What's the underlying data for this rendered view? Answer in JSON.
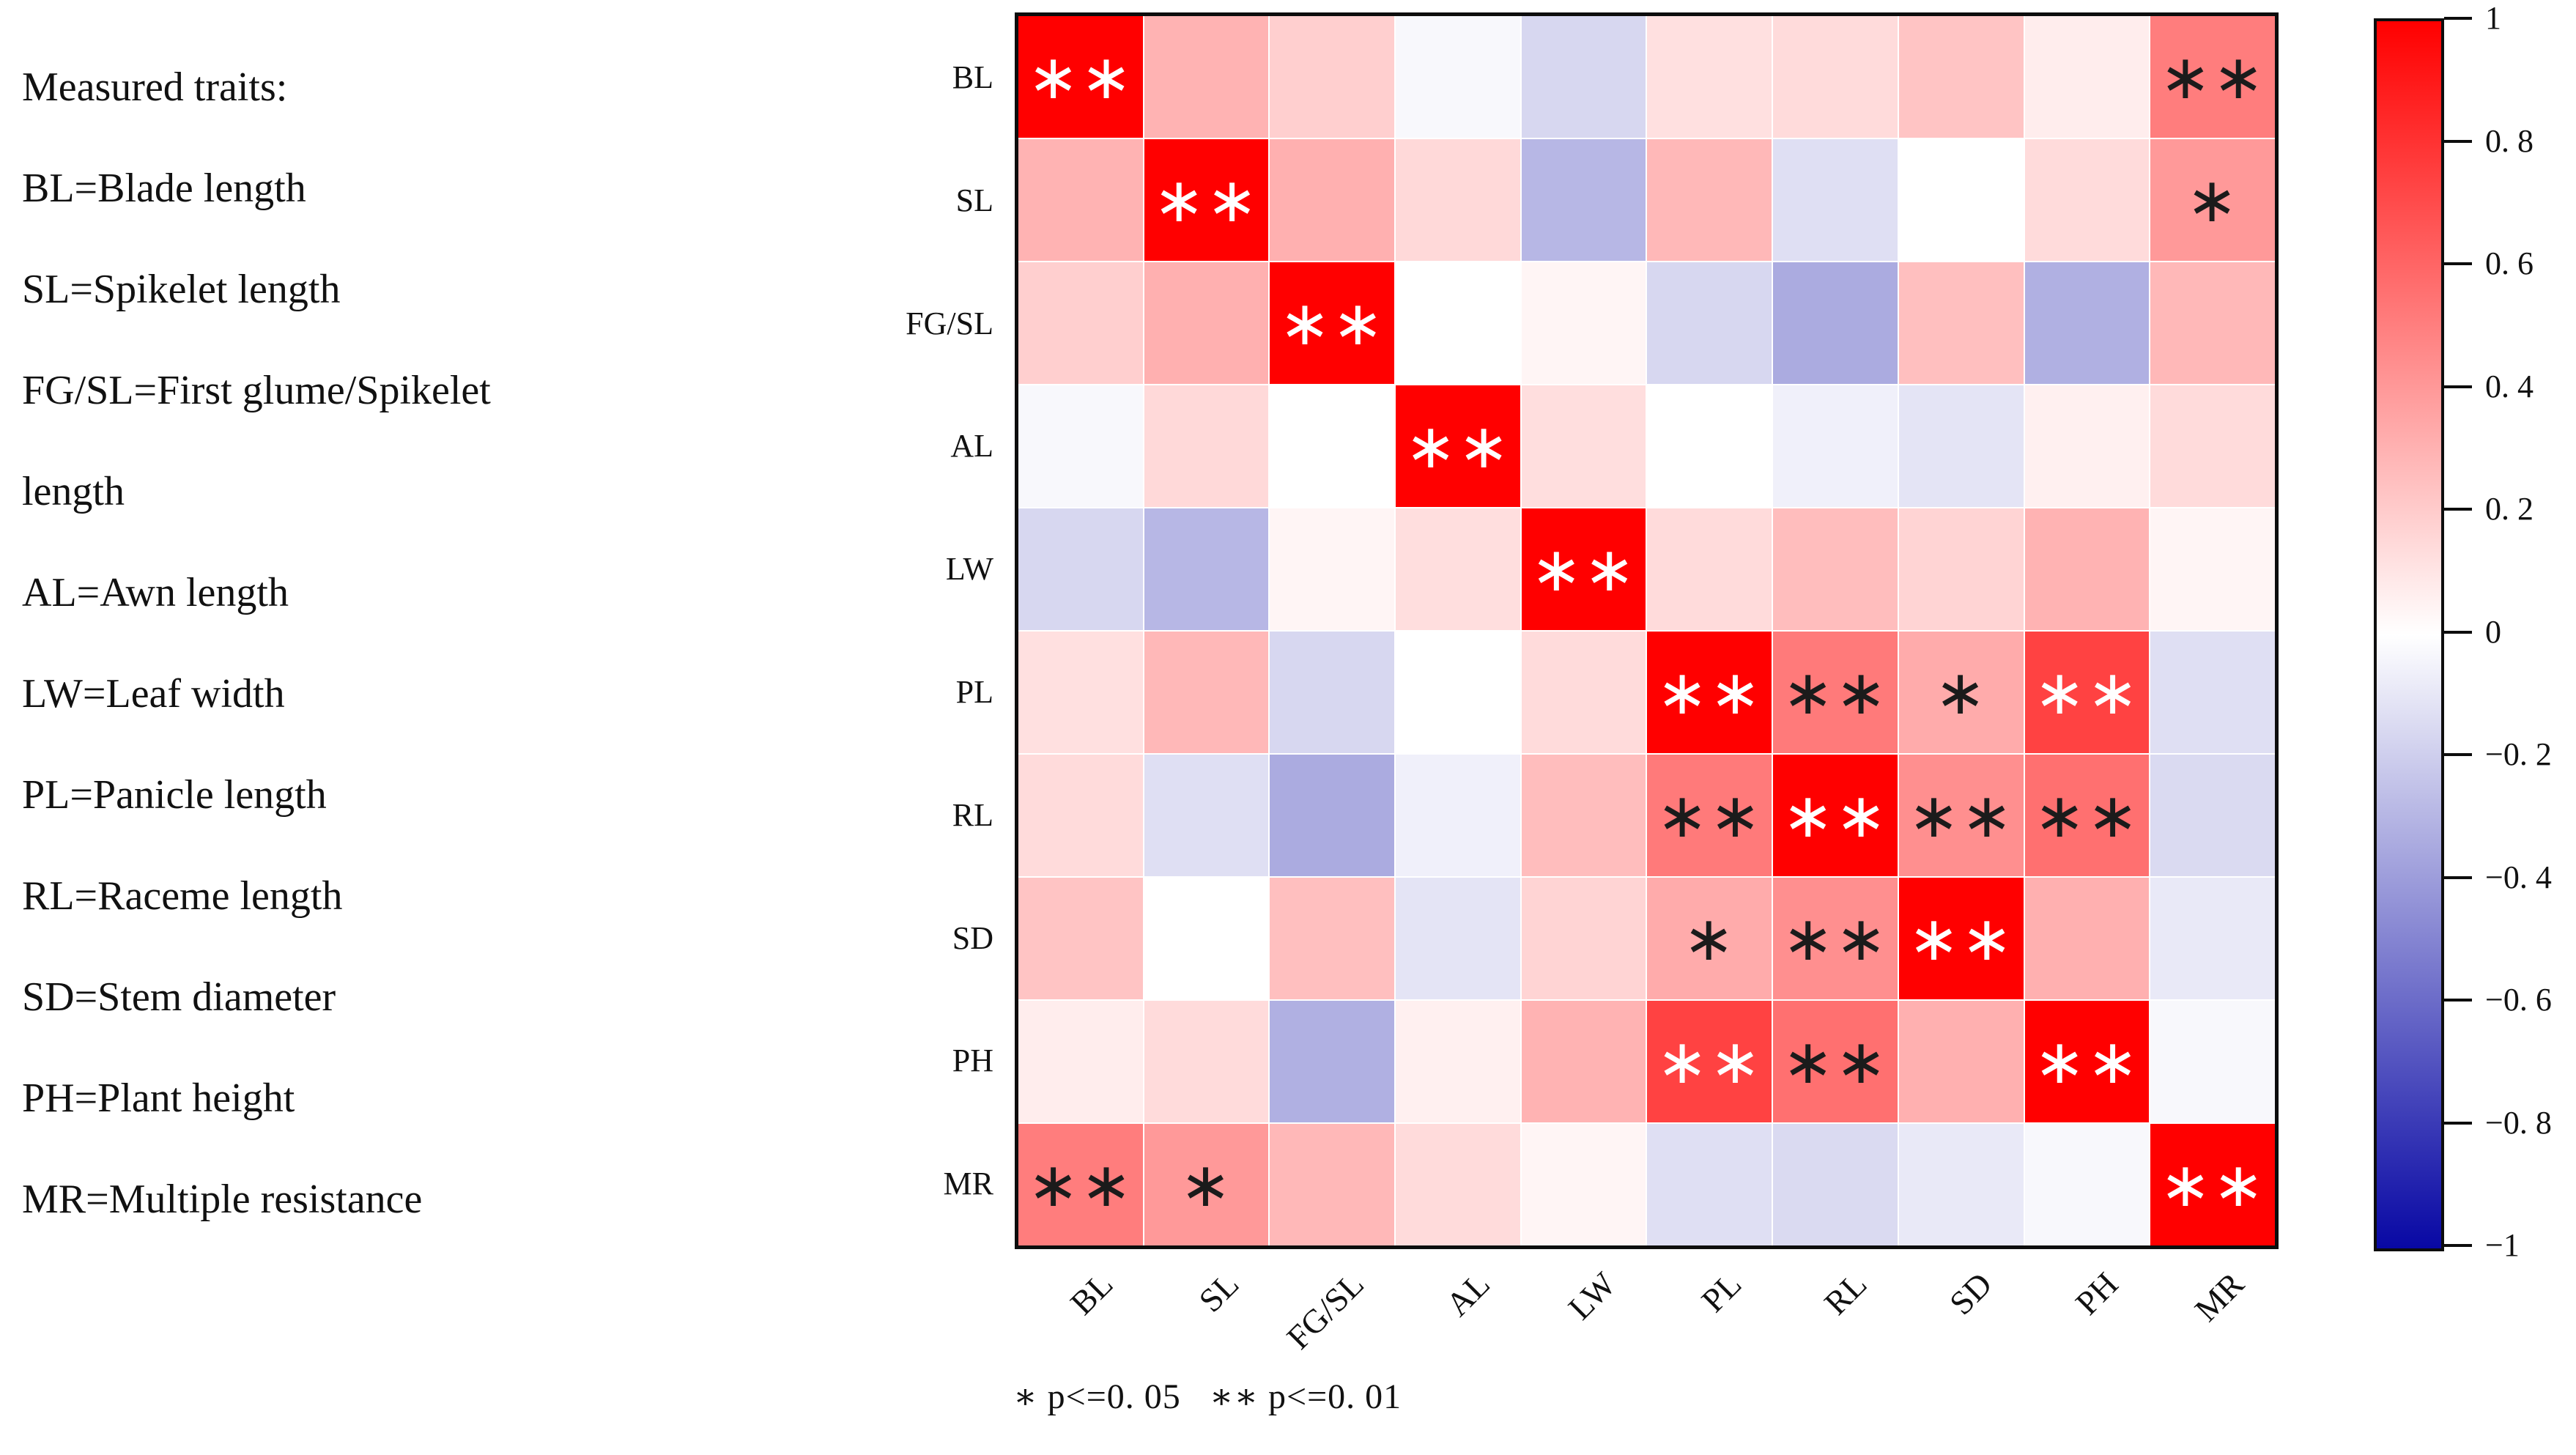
{
  "left_panel": {
    "lines": [
      "Measured traits:",
      "BL=Blade length",
      "SL=Spikelet length",
      "FG/SL=First glume/Spikelet",
      "length",
      "AL=Awn length",
      "LW=Leaf width",
      "PL=Panicle length",
      "RL=Raceme length",
      "SD=Stem diameter",
      "PH=Plant height",
      "MR=Multiple resistance"
    ]
  },
  "chart_data": {
    "type": "heatmap",
    "title": "",
    "xlabel": "",
    "ylabel": "",
    "categories": [
      "BL",
      "SL",
      "FG/SL",
      "AL",
      "LW",
      "PL",
      "RL",
      "SD",
      "PH",
      "MR"
    ],
    "matrix": [
      [
        1.0,
        0.3,
        0.19,
        -0.03,
        -0.16,
        0.12,
        0.14,
        0.23,
        0.07,
        0.51
      ],
      [
        0.3,
        1.0,
        0.31,
        0.15,
        -0.29,
        0.28,
        -0.13,
        0.0,
        0.14,
        0.4
      ],
      [
        0.19,
        0.31,
        1.0,
        0.0,
        0.04,
        -0.16,
        -0.34,
        0.25,
        -0.32,
        0.28
      ],
      [
        -0.03,
        0.15,
        0.0,
        1.0,
        0.13,
        0.0,
        -0.06,
        -0.11,
        0.06,
        0.14
      ],
      [
        -0.16,
        -0.29,
        0.04,
        0.13,
        1.0,
        0.14,
        0.26,
        0.17,
        0.3,
        0.04
      ],
      [
        0.12,
        0.28,
        -0.16,
        0.0,
        0.14,
        1.0,
        0.52,
        0.33,
        0.74,
        -0.13
      ],
      [
        0.14,
        -0.13,
        -0.34,
        -0.06,
        0.26,
        0.52,
        1.0,
        0.44,
        0.56,
        -0.15
      ],
      [
        0.23,
        0.0,
        0.25,
        -0.11,
        0.17,
        0.33,
        0.44,
        1.0,
        0.31,
        -0.09
      ],
      [
        0.07,
        0.14,
        -0.32,
        0.06,
        0.3,
        0.74,
        0.56,
        0.31,
        1.0,
        -0.03
      ],
      [
        0.51,
        0.4,
        0.28,
        0.14,
        0.04,
        -0.13,
        -0.15,
        -0.09,
        -0.03,
        1.0
      ]
    ],
    "significance": [
      [
        "**",
        "",
        "",
        "",
        "",
        "",
        "",
        "",
        "",
        "**"
      ],
      [
        "",
        "**",
        "",
        "",
        "",
        "",
        "",
        "",
        "",
        "*"
      ],
      [
        "",
        "",
        "**",
        "",
        "",
        "",
        "",
        "",
        "",
        ""
      ],
      [
        "",
        "",
        "",
        "**",
        "",
        "",
        "",
        "",
        "",
        ""
      ],
      [
        "",
        "",
        "",
        "",
        "**",
        "",
        "",
        "",
        "",
        ""
      ],
      [
        "",
        "",
        "",
        "",
        "",
        "**",
        "**",
        "*",
        "**",
        ""
      ],
      [
        "",
        "",
        "",
        "",
        "",
        "**",
        "**",
        "**",
        "**",
        ""
      ],
      [
        "",
        "",
        "",
        "",
        "",
        "*",
        "**",
        "**",
        "",
        ""
      ],
      [
        "",
        "",
        "",
        "",
        "",
        "**",
        "**",
        "",
        "**",
        ""
      ],
      [
        "**",
        "*",
        "",
        "",
        "",
        "",
        "",
        "",
        "",
        "**"
      ]
    ],
    "value_range": [
      -1,
      1
    ],
    "star_white_threshold": 0.7,
    "colors": {
      "max_color": "#ff0000",
      "mid_color": "#ffffff",
      "min_color": "#0808a4",
      "star_dark": "#1b1b1b",
      "star_light": "#ffffff"
    },
    "colorbar": {
      "position": "right",
      "tick_values": [
        1,
        0.8,
        0.6,
        0.4,
        0.2,
        0,
        -0.2,
        -0.4,
        -0.6,
        -0.8,
        -1
      ],
      "ticks": [
        "1",
        "0. 8",
        "0. 6",
        "0. 4",
        "0. 2",
        "0",
        "−0. 2",
        "−0. 4",
        "−0. 6",
        "−0. 8",
        "−1"
      ]
    },
    "footnote": "∗ p<=0. 05   ∗∗ p<=0. 01"
  }
}
